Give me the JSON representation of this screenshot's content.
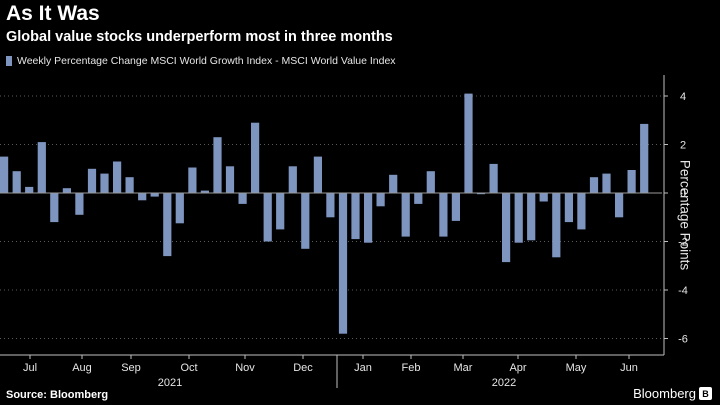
{
  "header": {
    "title": "As It Was",
    "subtitle": "Global value stocks underperform most in three months"
  },
  "legend": {
    "label": "Weekly Percentage Change MSCI World Growth Index - MSCI World Value  Index"
  },
  "colors": {
    "bar": "#7d95bf",
    "background": "#000000",
    "text": "#e6e6e6"
  },
  "footer": {
    "source": "Source: Bloomberg",
    "brand": "Bloomberg",
    "brand_icon": "bloomberg-terminal-icon"
  },
  "chart_data": {
    "type": "bar",
    "ylabel": "Percentage Points",
    "ylim": [
      -6.5,
      5
    ],
    "yticks": [
      4,
      2,
      0,
      -2,
      -4,
      -6
    ],
    "grid": "horizontal dotted",
    "legend_position": "top-left",
    "yaxis_side": "right",
    "month_labels": [
      "Jul",
      "Aug",
      "Sep",
      "Oct",
      "Nov",
      "Dec",
      "Jan",
      "Feb",
      "Mar",
      "Apr",
      "May",
      "Jun"
    ],
    "year_labels": [
      "2021",
      "2022"
    ],
    "series": [
      {
        "values": [
          1.5,
          0.9,
          0.25,
          2.1,
          -1.2,
          0.2,
          -0.9,
          1.0,
          0.8,
          1.3,
          0.65,
          -0.3,
          -0.15,
          -2.6,
          -1.25,
          1.05,
          0.1,
          2.3,
          1.1,
          -0.45,
          2.9,
          -2.0,
          -1.5,
          1.1,
          -2.3,
          1.5,
          -1.0,
          -5.8,
          -1.9,
          -2.05,
          -0.55,
          0.75,
          -1.8,
          -0.45,
          0.9,
          -1.8,
          -1.15,
          4.1,
          -0.05,
          1.2,
          -2.85,
          -2.05,
          -1.95,
          -0.35,
          -2.65,
          -1.2,
          -1.5,
          0.65,
          0.8,
          -1.0,
          0.95,
          2.85
        ]
      }
    ]
  }
}
